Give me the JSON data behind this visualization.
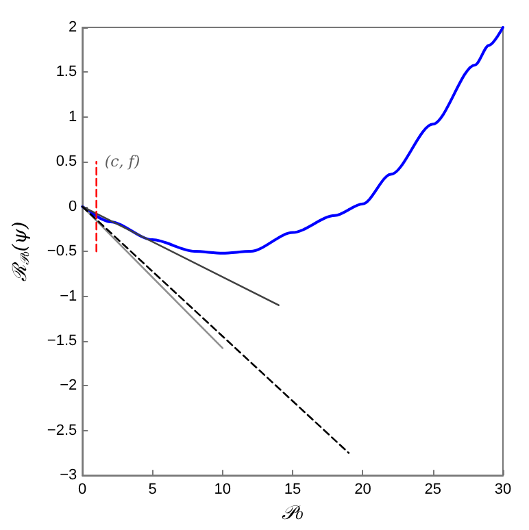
{
  "chart_data": {
    "type": "line",
    "xlabel": "𝒫₀",
    "ylabel": "ℛ$_{𝒫₀}$(ψ)",
    "series": [
      {
        "color": "#0000ff",
        "x": [
          0,
          2,
          5,
          8,
          10,
          12,
          15,
          18,
          20,
          22,
          25,
          28,
          29,
          30
        ],
        "values": [
          0,
          -0.17,
          -0.37,
          -0.5,
          -0.52,
          -0.5,
          -0.29,
          -0.1,
          0.03,
          0.36,
          0.92,
          1.58,
          1.8,
          2
        ]
      },
      {
        "color": "#404040",
        "x": [
          0,
          14
        ],
        "values": [
          0,
          -1.1
        ]
      },
      {
        "color": "#909090",
        "x": [
          0,
          10
        ],
        "values": [
          0,
          -1.58
        ]
      },
      {
        "color": "#000000",
        "x": [
          0,
          19
        ],
        "values": [
          0,
          -2.75
        ],
        "line_style": "dashed"
      },
      {
        "color": "#ff0000",
        "x": [
          1,
          1
        ],
        "values": [
          -0.5,
          0.5
        ],
        "line_style": "dashed"
      }
    ],
    "annotations": [
      {
        "text": "(c, f)",
        "x": 1,
        "y": 0.5
      }
    ],
    "xlim": [
      0,
      30
    ],
    "ylim": [
      -3,
      2
    ],
    "xticks": [
      0,
      5,
      10,
      15,
      20,
      25,
      30
    ],
    "yticks": [
      -3,
      -2.5,
      -2,
      -1.5,
      -1,
      -0.5,
      0,
      0.5,
      1,
      1.5,
      2
    ],
    "marker": "none",
    "line_style": "solid"
  }
}
